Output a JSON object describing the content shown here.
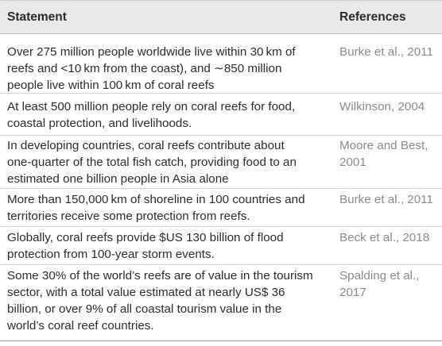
{
  "table": {
    "headers": {
      "statement": "Statement",
      "references": "References"
    },
    "rows": [
      {
        "statement_lines": [
          "Over 275 million people worldwide live within 30 km of",
          "reefs and <10 km from the coast), and ∼850 million",
          "people live within 100 km of coral reefs"
        ],
        "reference_lines": [
          "Burke et al., 2011"
        ]
      },
      {
        "statement_lines": [
          "At least 500 million people rely on coral reefs for food,",
          "coastal protection, and livelihoods."
        ],
        "reference_lines": [
          "Wilkinson, 2004"
        ]
      },
      {
        "statement_lines": [
          "In developing countries, coral reefs contribute about",
          "one-quarter of the total fish catch, providing food to an",
          "estimated one billion people in Asia alone"
        ],
        "reference_lines": [
          "Moore and Best,",
          "2001"
        ]
      },
      {
        "statement_lines": [
          "More than 150,000 km of shoreline in 100 countries and",
          "territories receive some protection from reefs."
        ],
        "reference_lines": [
          "Burke et al., 2011"
        ]
      },
      {
        "statement_lines": [
          "Globally, coral reefs provide $US 130 billion of flood",
          "protection from 100-year storm events."
        ],
        "reference_lines": [
          "Beck et al., 2018"
        ]
      },
      {
        "statement_lines": [
          "Some 30% of the world’s reefs are of value in the tourism",
          "sector, with a total value estimated at nearly US$ 36",
          "billion, or over 9% of all coastal tourism value in the",
          "world’s coral reef countries."
        ],
        "reference_lines": [
          "Spalding et al.,",
          "2017"
        ]
      }
    ]
  }
}
